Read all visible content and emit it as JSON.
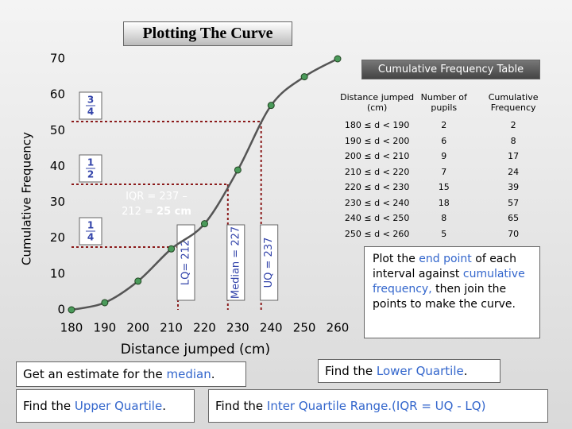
{
  "title": "Plotting The Curve",
  "chart_data": {
    "type": "line",
    "x_label": "Distance jumped (cm)",
    "y_label": "Cumulative Frequency",
    "x": [
      180,
      190,
      200,
      210,
      220,
      230,
      240,
      250,
      260
    ],
    "values": [
      0,
      2,
      8,
      17,
      24,
      39,
      57,
      65,
      70
    ],
    "line_color": "#555555",
    "marker_color": "#4a9a5a",
    "xlim": [
      180,
      260
    ],
    "xticks": [
      180,
      190,
      200,
      210,
      220,
      230,
      240,
      250,
      260
    ],
    "ylim": [
      0,
      70
    ],
    "yticks": [
      0,
      10,
      20,
      30,
      40,
      50,
      60,
      70
    ],
    "quartiles": [
      {
        "label": "LQ= 212",
        "x": 212,
        "y": 17.5,
        "fraction": {
          "numerator": 1,
          "denominator": 4
        }
      },
      {
        "label": "Median = 227",
        "x": 227,
        "y": 35,
        "fraction": {
          "numerator": 1,
          "denominator": 2
        }
      },
      {
        "label": "UQ = 237",
        "x": 237,
        "y": 52.5,
        "fraction": {
          "numerator": 3,
          "denominator": 4
        }
      }
    ],
    "iqr_note": [
      [
        {
          "text": "IQR = 237 –"
        }
      ],
      [
        {
          "text": "212 = "
        },
        {
          "text": "25 cm",
          "bold": true
        }
      ]
    ]
  },
  "table": {
    "title": "Cumulative Frequency Table",
    "columns": [
      "Distance jumped (cm)",
      "Number of pupils",
      "Cumulative Frequency"
    ],
    "rows": [
      [
        "180 ≤ d < 190",
        2,
        2
      ],
      [
        "190 ≤ d < 200",
        6,
        8
      ],
      [
        "200 ≤ d < 210",
        9,
        17
      ],
      [
        "210 ≤ d < 220",
        7,
        24
      ],
      [
        "220 ≤ d < 230",
        15,
        39
      ],
      [
        "230 ≤ d < 240",
        18,
        57
      ],
      [
        "240 ≤ d < 250",
        8,
        65
      ],
      [
        "250 ≤ d < 260",
        5,
        70
      ]
    ]
  },
  "plot_note": [
    {
      "text": "Plot the "
    },
    {
      "text": "end point",
      "color": "#3366cc"
    },
    {
      "text": " of each interval against "
    },
    {
      "text": "cumulative frequency,",
      "color": "#3366cc"
    },
    {
      "text": " then join the points to make the curve."
    }
  ],
  "tasks": {
    "median": [
      {
        "text": "Get an estimate for the "
      },
      {
        "text": "median",
        "color": "#3366cc"
      },
      {
        "text": "."
      }
    ],
    "lower_quartile": [
      {
        "text": "Find the "
      },
      {
        "text": "Lower Quartile",
        "color": "#3366cc"
      },
      {
        "text": "."
      }
    ],
    "upper_quartile": [
      {
        "text": "Find the "
      },
      {
        "text": "Upper Quartile",
        "color": "#3366cc"
      },
      {
        "text": "."
      }
    ],
    "iqr": [
      {
        "text": "Find the "
      },
      {
        "text": "Inter Quartile Range.(IQR = UQ - LQ)",
        "color": "#3366cc"
      }
    ]
  }
}
